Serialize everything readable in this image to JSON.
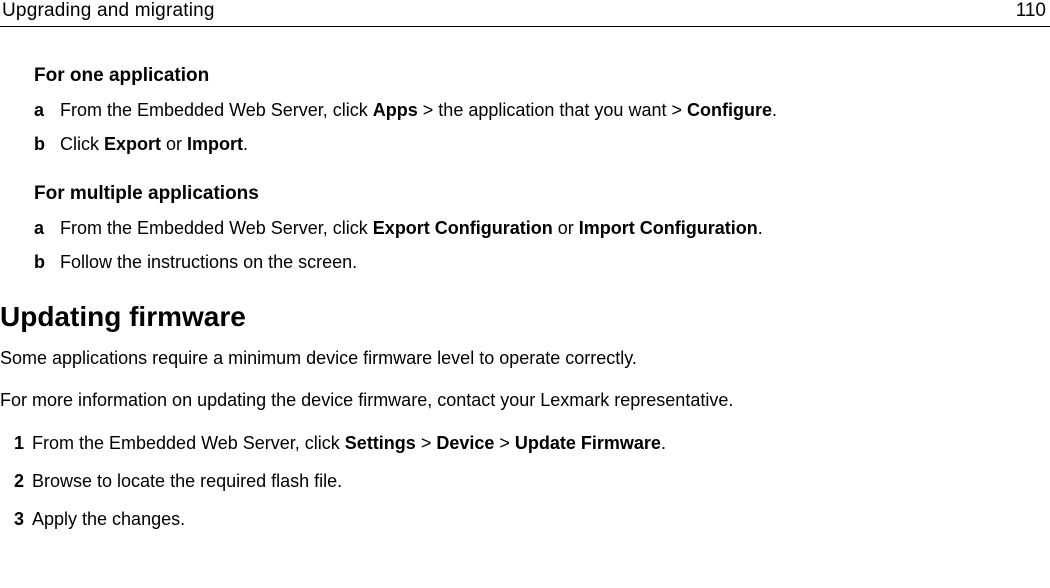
{
  "header": {
    "title": "Upgrading and migrating",
    "page_number": "110"
  },
  "section1": {
    "heading": "For one application",
    "items": [
      {
        "marker": "a",
        "prefix": "From the Embedded Web Server, click ",
        "b1": "Apps",
        "mid1": " > the application that you want > ",
        "b2": "Configure",
        "suffix": "."
      },
      {
        "marker": "b",
        "prefix": "Click ",
        "b1": "Export",
        "mid1": " or ",
        "b2": "Import",
        "suffix": "."
      }
    ]
  },
  "section2": {
    "heading": "For multiple applications",
    "items": [
      {
        "marker": "a",
        "prefix": "From the Embedded Web Server, click ",
        "b1": "Export Configuration",
        "mid1": " or ",
        "b2": "Import Configuration",
        "suffix": "."
      },
      {
        "marker": "b",
        "prefix": "Follow the instructions on the screen.",
        "b1": "",
        "mid1": "",
        "b2": "",
        "suffix": ""
      }
    ]
  },
  "firmware": {
    "heading": "Updating firmware",
    "para1": "Some applications require a minimum device firmware level to operate correctly.",
    "para2": "For more information on updating the device firmware, contact your Lexmark representative.",
    "steps": [
      {
        "marker": "1",
        "prefix": "From the Embedded Web Server, click ",
        "b1": "Settings",
        "mid1": " > ",
        "b2": "Device",
        "mid2": " > ",
        "b3": "Update Firmware",
        "suffix": "."
      },
      {
        "marker": "2",
        "prefix": "Browse to locate the required flash file.",
        "b1": "",
        "mid1": "",
        "b2": "",
        "mid2": "",
        "b3": "",
        "suffix": ""
      },
      {
        "marker": "3",
        "prefix": "Apply the changes.",
        "b1": "",
        "mid1": "",
        "b2": "",
        "mid2": "",
        "b3": "",
        "suffix": ""
      }
    ]
  }
}
